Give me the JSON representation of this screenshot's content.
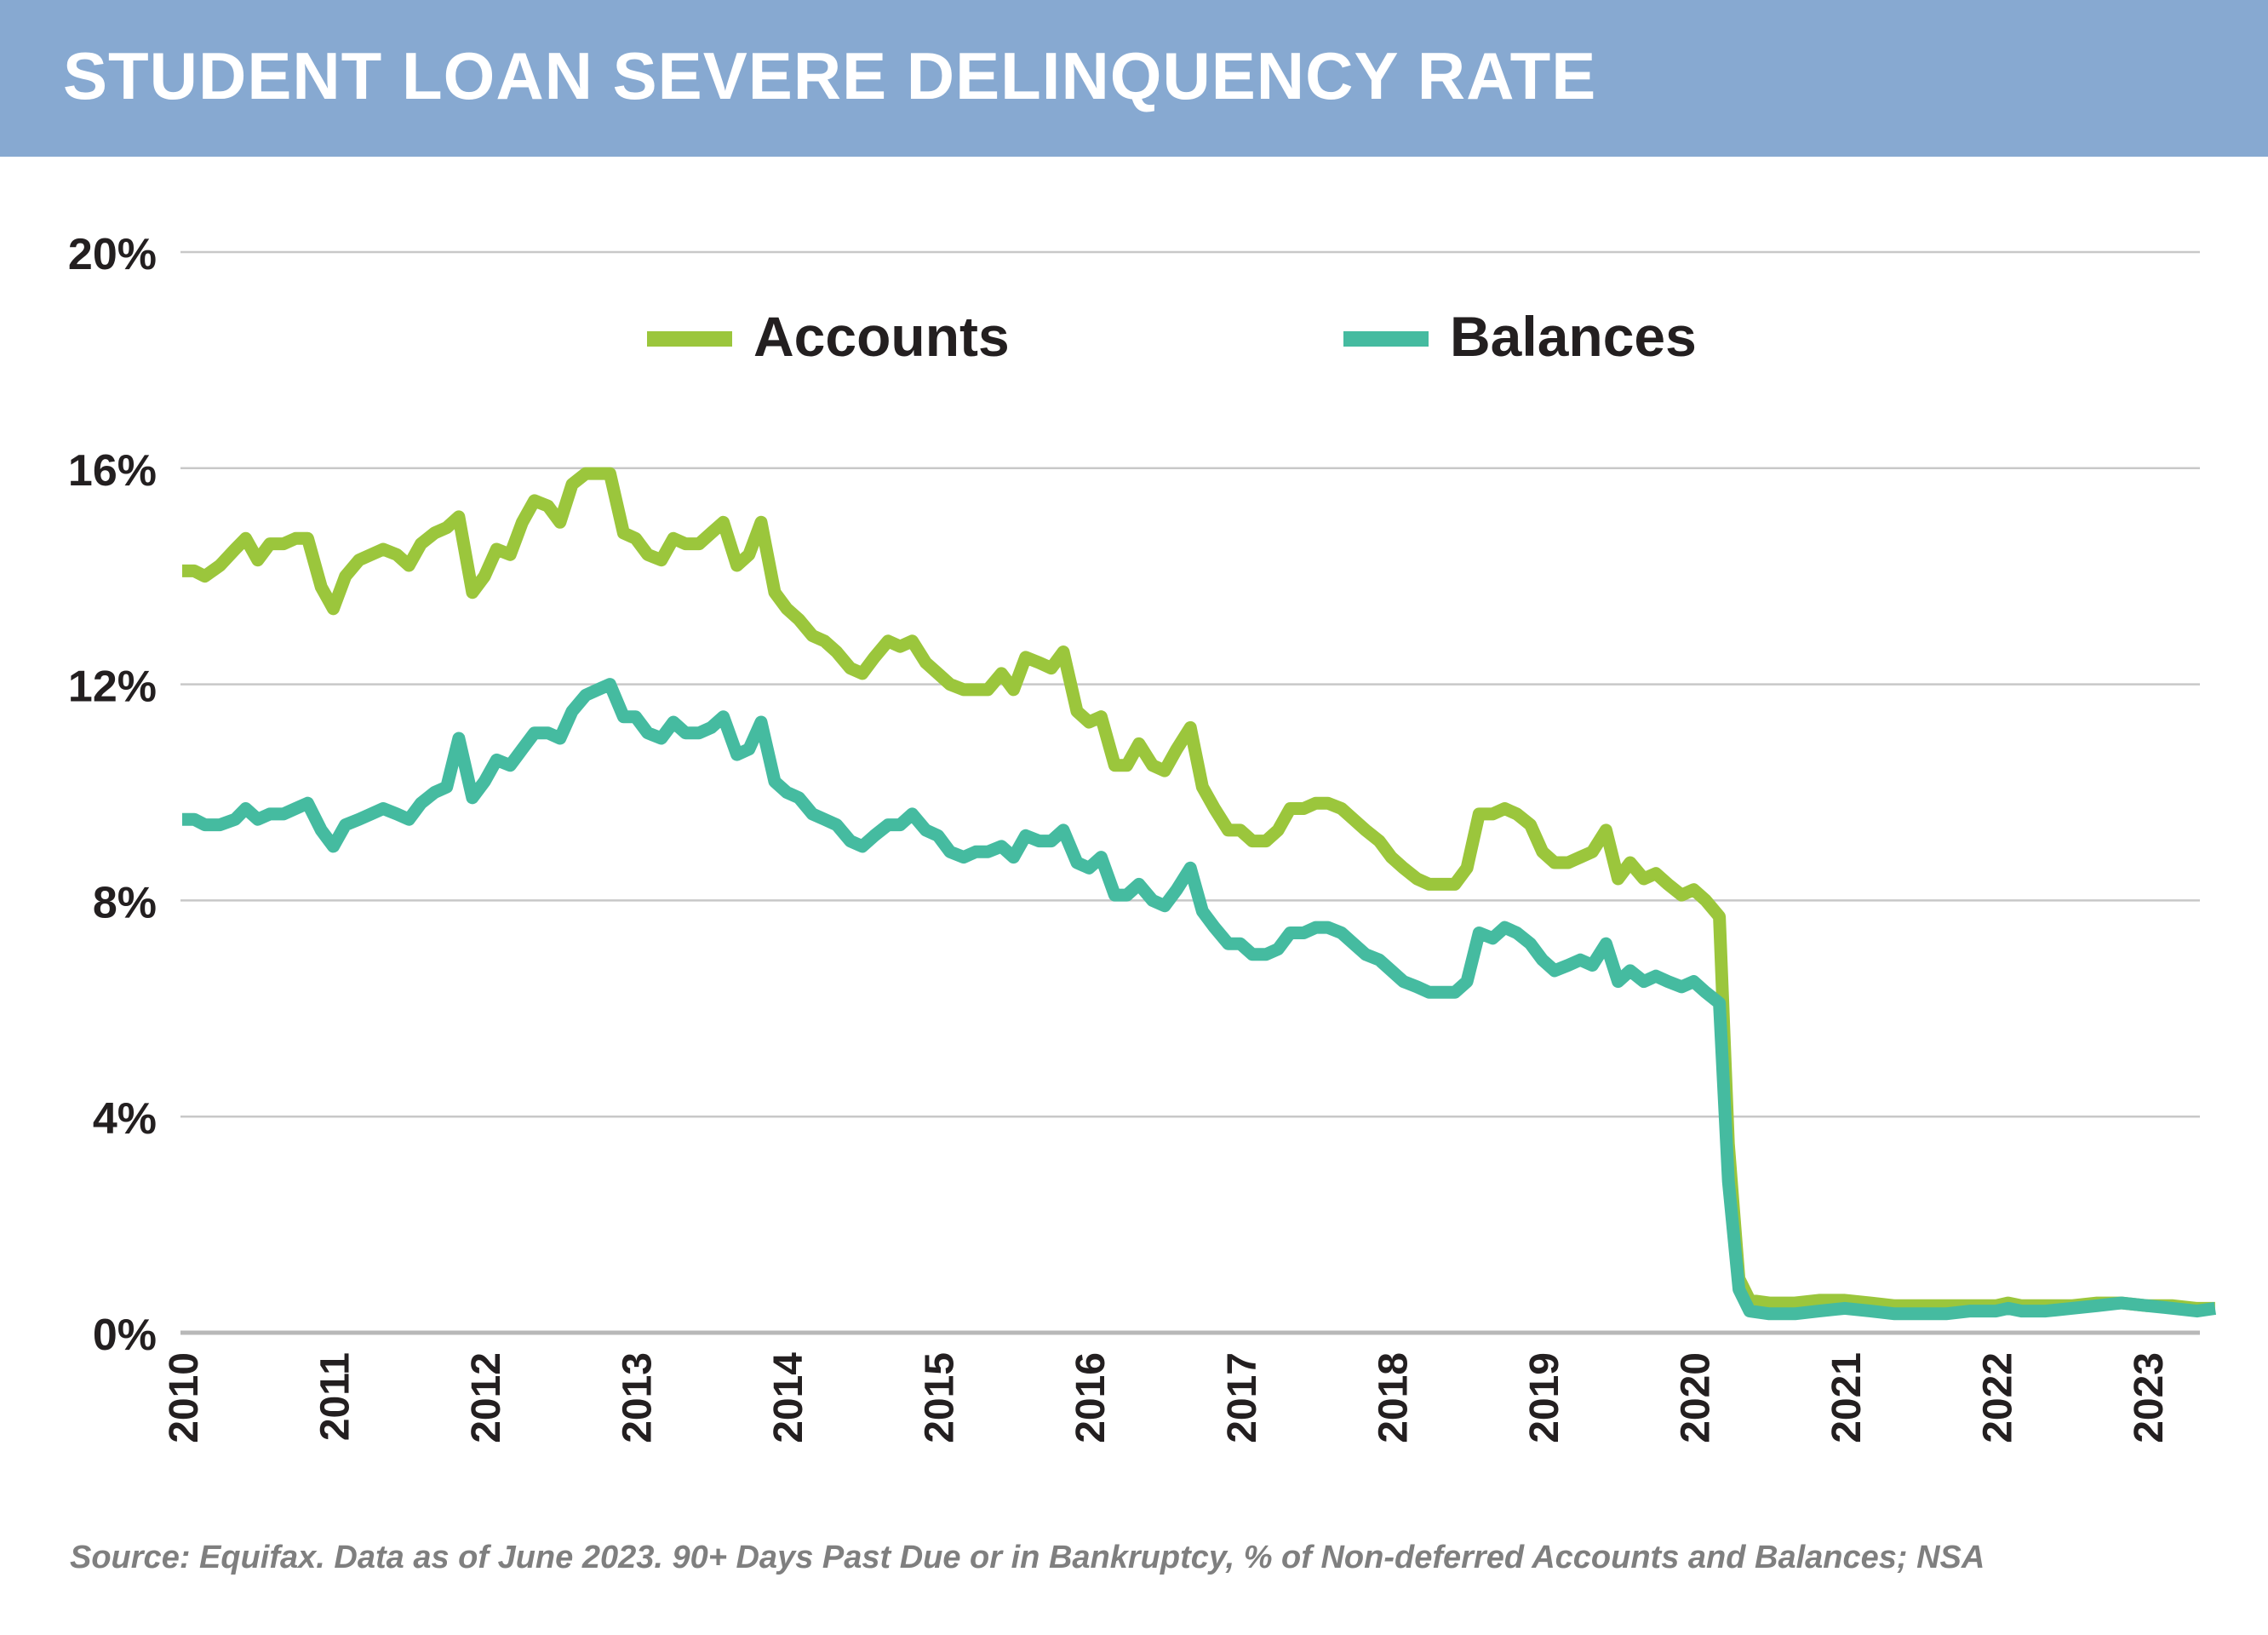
{
  "title": "STUDENT LOAN SEVERE DELINQUENCY RATE",
  "source": "Source: Equifax. Data as of June 2023. 90+ Days Past Due or in Bankruptcy, % of Non-deferred Accounts and Balances; NSA",
  "colors": {
    "header": "#87a9d1",
    "accounts": "#9bc63c",
    "balances": "#45bba0",
    "grid": "#c8c8c8"
  },
  "chart_data": {
    "type": "line",
    "title": "STUDENT LOAN SEVERE DELINQUENCY RATE",
    "xlabel": "",
    "ylabel": "",
    "x_ticks": [
      "2010",
      "2011",
      "2012",
      "2013",
      "2014",
      "2015",
      "2016",
      "2017",
      "2018",
      "2019",
      "2020",
      "2021",
      "2022",
      "2023"
    ],
    "y_ticks": [
      "0%",
      "4%",
      "8%",
      "12%",
      "16%",
      "20%"
    ],
    "y_tick_values": [
      0,
      4,
      8,
      12,
      16,
      20
    ],
    "ylim": [
      0,
      20
    ],
    "xlim": [
      2010.0,
      2023.5
    ],
    "grid": true,
    "legend": "top-center",
    "series": [
      {
        "name": "Accounts",
        "color": "#9bc63c",
        "points": [
          [
            2010.0,
            14.1
          ],
          [
            2010.08,
            14.1
          ],
          [
            2010.15,
            14.0
          ],
          [
            2010.25,
            14.2
          ],
          [
            2010.35,
            14.5
          ],
          [
            2010.42,
            14.7
          ],
          [
            2010.5,
            14.3
          ],
          [
            2010.58,
            14.6
          ],
          [
            2010.67,
            14.6
          ],
          [
            2010.75,
            14.7
          ],
          [
            2010.83,
            14.7
          ],
          [
            2010.92,
            13.8
          ],
          [
            2011.0,
            13.4
          ],
          [
            2011.08,
            14.0
          ],
          [
            2011.17,
            14.3
          ],
          [
            2011.25,
            14.4
          ],
          [
            2011.33,
            14.5
          ],
          [
            2011.42,
            14.4
          ],
          [
            2011.5,
            14.2
          ],
          [
            2011.58,
            14.6
          ],
          [
            2011.67,
            14.8
          ],
          [
            2011.75,
            14.9
          ],
          [
            2011.83,
            15.1
          ],
          [
            2011.92,
            13.7
          ],
          [
            2012.0,
            14.0
          ],
          [
            2012.08,
            14.5
          ],
          [
            2012.17,
            14.4
          ],
          [
            2012.25,
            15.0
          ],
          [
            2012.33,
            15.4
          ],
          [
            2012.42,
            15.3
          ],
          [
            2012.5,
            15.0
          ],
          [
            2012.58,
            15.7
          ],
          [
            2012.67,
            15.9
          ],
          [
            2012.75,
            15.9
          ],
          [
            2012.83,
            15.9
          ],
          [
            2012.92,
            14.8
          ],
          [
            2013.0,
            14.7
          ],
          [
            2013.08,
            14.4
          ],
          [
            2013.17,
            14.3
          ],
          [
            2013.25,
            14.7
          ],
          [
            2013.33,
            14.6
          ],
          [
            2013.42,
            14.6
          ],
          [
            2013.5,
            14.8
          ],
          [
            2013.58,
            15.0
          ],
          [
            2013.67,
            14.2
          ],
          [
            2013.75,
            14.4
          ],
          [
            2013.83,
            15.0
          ],
          [
            2013.92,
            13.7
          ],
          [
            2014.0,
            13.4
          ],
          [
            2014.08,
            13.2
          ],
          [
            2014.17,
            12.9
          ],
          [
            2014.25,
            12.8
          ],
          [
            2014.33,
            12.6
          ],
          [
            2014.42,
            12.3
          ],
          [
            2014.5,
            12.2
          ],
          [
            2014.58,
            12.5
          ],
          [
            2014.67,
            12.8
          ],
          [
            2014.75,
            12.7
          ],
          [
            2014.83,
            12.8
          ],
          [
            2014.92,
            12.4
          ],
          [
            2015.0,
            12.2
          ],
          [
            2015.08,
            12.0
          ],
          [
            2015.17,
            11.9
          ],
          [
            2015.25,
            11.9
          ],
          [
            2015.33,
            11.9
          ],
          [
            2015.42,
            12.2
          ],
          [
            2015.5,
            11.9
          ],
          [
            2015.58,
            12.5
          ],
          [
            2015.67,
            12.4
          ],
          [
            2015.75,
            12.3
          ],
          [
            2015.83,
            12.6
          ],
          [
            2015.92,
            11.5
          ],
          [
            2016.0,
            11.3
          ],
          [
            2016.08,
            11.4
          ],
          [
            2016.17,
            10.5
          ],
          [
            2016.25,
            10.5
          ],
          [
            2016.33,
            10.9
          ],
          [
            2016.42,
            10.5
          ],
          [
            2016.5,
            10.4
          ],
          [
            2016.58,
            10.8
          ],
          [
            2016.67,
            11.2
          ],
          [
            2016.75,
            10.1
          ],
          [
            2016.83,
            9.7
          ],
          [
            2016.92,
            9.3
          ],
          [
            2017.0,
            9.3
          ],
          [
            2017.08,
            9.1
          ],
          [
            2017.17,
            9.1
          ],
          [
            2017.25,
            9.3
          ],
          [
            2017.33,
            9.7
          ],
          [
            2017.42,
            9.7
          ],
          [
            2017.5,
            9.8
          ],
          [
            2017.58,
            9.8
          ],
          [
            2017.67,
            9.7
          ],
          [
            2017.75,
            9.5
          ],
          [
            2017.83,
            9.3
          ],
          [
            2017.92,
            9.1
          ],
          [
            2018.0,
            8.8
          ],
          [
            2018.08,
            8.6
          ],
          [
            2018.17,
            8.4
          ],
          [
            2018.25,
            8.3
          ],
          [
            2018.33,
            8.3
          ],
          [
            2018.42,
            8.3
          ],
          [
            2018.5,
            8.6
          ],
          [
            2018.58,
            9.6
          ],
          [
            2018.67,
            9.6
          ],
          [
            2018.75,
            9.7
          ],
          [
            2018.83,
            9.6
          ],
          [
            2018.92,
            9.4
          ],
          [
            2019.0,
            8.9
          ],
          [
            2019.08,
            8.7
          ],
          [
            2019.17,
            8.7
          ],
          [
            2019.25,
            8.8
          ],
          [
            2019.33,
            8.9
          ],
          [
            2019.42,
            9.3
          ],
          [
            2019.5,
            8.4
          ],
          [
            2019.58,
            8.7
          ],
          [
            2019.67,
            8.4
          ],
          [
            2019.75,
            8.5
          ],
          [
            2019.83,
            8.3
          ],
          [
            2019.92,
            8.1
          ],
          [
            2020.0,
            8.2
          ],
          [
            2020.08,
            8.0
          ],
          [
            2020.17,
            7.7
          ],
          [
            2020.23,
            3.5
          ],
          [
            2020.3,
            1.0
          ],
          [
            2020.37,
            0.6
          ],
          [
            2020.5,
            0.55
          ],
          [
            2020.67,
            0.55
          ],
          [
            2020.83,
            0.6
          ],
          [
            2021.0,
            0.6
          ],
          [
            2021.17,
            0.55
          ],
          [
            2021.33,
            0.5
          ],
          [
            2021.5,
            0.5
          ],
          [
            2021.67,
            0.5
          ],
          [
            2021.83,
            0.5
          ],
          [
            2022.0,
            0.5
          ],
          [
            2022.08,
            0.55
          ],
          [
            2022.17,
            0.5
          ],
          [
            2022.33,
            0.5
          ],
          [
            2022.5,
            0.5
          ],
          [
            2022.67,
            0.55
          ],
          [
            2022.83,
            0.55
          ],
          [
            2023.0,
            0.5
          ],
          [
            2023.17,
            0.5
          ],
          [
            2023.33,
            0.45
          ],
          [
            2023.45,
            0.45
          ]
        ]
      },
      {
        "name": "Balances",
        "color": "#45bba0",
        "points": [
          [
            2010.0,
            9.5
          ],
          [
            2010.08,
            9.5
          ],
          [
            2010.15,
            9.4
          ],
          [
            2010.25,
            9.4
          ],
          [
            2010.35,
            9.5
          ],
          [
            2010.42,
            9.7
          ],
          [
            2010.5,
            9.5
          ],
          [
            2010.58,
            9.6
          ],
          [
            2010.67,
            9.6
          ],
          [
            2010.75,
            9.7
          ],
          [
            2010.83,
            9.8
          ],
          [
            2010.92,
            9.3
          ],
          [
            2011.0,
            9.0
          ],
          [
            2011.08,
            9.4
          ],
          [
            2011.17,
            9.5
          ],
          [
            2011.25,
            9.6
          ],
          [
            2011.33,
            9.7
          ],
          [
            2011.42,
            9.6
          ],
          [
            2011.5,
            9.5
          ],
          [
            2011.58,
            9.8
          ],
          [
            2011.67,
            10.0
          ],
          [
            2011.75,
            10.1
          ],
          [
            2011.83,
            11.0
          ],
          [
            2011.92,
            9.9
          ],
          [
            2012.0,
            10.2
          ],
          [
            2012.08,
            10.6
          ],
          [
            2012.17,
            10.5
          ],
          [
            2012.25,
            10.8
          ],
          [
            2012.33,
            11.1
          ],
          [
            2012.42,
            11.1
          ],
          [
            2012.5,
            11.0
          ],
          [
            2012.58,
            11.5
          ],
          [
            2012.67,
            11.8
          ],
          [
            2012.75,
            11.9
          ],
          [
            2012.83,
            12.0
          ],
          [
            2012.92,
            11.4
          ],
          [
            2013.0,
            11.4
          ],
          [
            2013.08,
            11.1
          ],
          [
            2013.17,
            11.0
          ],
          [
            2013.25,
            11.3
          ],
          [
            2013.33,
            11.1
          ],
          [
            2013.42,
            11.1
          ],
          [
            2013.5,
            11.2
          ],
          [
            2013.58,
            11.4
          ],
          [
            2013.67,
            10.7
          ],
          [
            2013.75,
            10.8
          ],
          [
            2013.83,
            11.3
          ],
          [
            2013.92,
            10.2
          ],
          [
            2014.0,
            10.0
          ],
          [
            2014.08,
            9.9
          ],
          [
            2014.17,
            9.6
          ],
          [
            2014.25,
            9.5
          ],
          [
            2014.33,
            9.4
          ],
          [
            2014.42,
            9.1
          ],
          [
            2014.5,
            9.0
          ],
          [
            2014.58,
            9.2
          ],
          [
            2014.67,
            9.4
          ],
          [
            2014.75,
            9.4
          ],
          [
            2014.83,
            9.6
          ],
          [
            2014.92,
            9.3
          ],
          [
            2015.0,
            9.2
          ],
          [
            2015.08,
            8.9
          ],
          [
            2015.17,
            8.8
          ],
          [
            2015.25,
            8.9
          ],
          [
            2015.33,
            8.9
          ],
          [
            2015.42,
            9.0
          ],
          [
            2015.5,
            8.8
          ],
          [
            2015.58,
            9.2
          ],
          [
            2015.67,
            9.1
          ],
          [
            2015.75,
            9.1
          ],
          [
            2015.83,
            9.3
          ],
          [
            2015.92,
            8.7
          ],
          [
            2016.0,
            8.6
          ],
          [
            2016.08,
            8.8
          ],
          [
            2016.17,
            8.1
          ],
          [
            2016.25,
            8.1
          ],
          [
            2016.33,
            8.3
          ],
          [
            2016.42,
            8.0
          ],
          [
            2016.5,
            7.9
          ],
          [
            2016.58,
            8.2
          ],
          [
            2016.67,
            8.6
          ],
          [
            2016.75,
            7.8
          ],
          [
            2016.83,
            7.5
          ],
          [
            2016.92,
            7.2
          ],
          [
            2017.0,
            7.2
          ],
          [
            2017.08,
            7.0
          ],
          [
            2017.17,
            7.0
          ],
          [
            2017.25,
            7.1
          ],
          [
            2017.33,
            7.4
          ],
          [
            2017.42,
            7.4
          ],
          [
            2017.5,
            7.5
          ],
          [
            2017.58,
            7.5
          ],
          [
            2017.67,
            7.4
          ],
          [
            2017.75,
            7.2
          ],
          [
            2017.83,
            7.0
          ],
          [
            2017.92,
            6.9
          ],
          [
            2018.0,
            6.7
          ],
          [
            2018.08,
            6.5
          ],
          [
            2018.17,
            6.4
          ],
          [
            2018.25,
            6.3
          ],
          [
            2018.33,
            6.3
          ],
          [
            2018.42,
            6.3
          ],
          [
            2018.5,
            6.5
          ],
          [
            2018.58,
            7.4
          ],
          [
            2018.67,
            7.3
          ],
          [
            2018.75,
            7.5
          ],
          [
            2018.83,
            7.4
          ],
          [
            2018.92,
            7.2
          ],
          [
            2019.0,
            6.9
          ],
          [
            2019.08,
            6.7
          ],
          [
            2019.17,
            6.8
          ],
          [
            2019.25,
            6.9
          ],
          [
            2019.33,
            6.8
          ],
          [
            2019.42,
            7.2
          ],
          [
            2019.5,
            6.5
          ],
          [
            2019.58,
            6.7
          ],
          [
            2019.67,
            6.5
          ],
          [
            2019.75,
            6.6
          ],
          [
            2019.83,
            6.5
          ],
          [
            2019.92,
            6.4
          ],
          [
            2020.0,
            6.5
          ],
          [
            2020.08,
            6.3
          ],
          [
            2020.17,
            6.1
          ],
          [
            2020.23,
            2.8
          ],
          [
            2020.3,
            0.8
          ],
          [
            2020.37,
            0.4
          ],
          [
            2020.5,
            0.35
          ],
          [
            2020.67,
            0.35
          ],
          [
            2020.83,
            0.4
          ],
          [
            2021.0,
            0.45
          ],
          [
            2021.17,
            0.4
          ],
          [
            2021.33,
            0.35
          ],
          [
            2021.5,
            0.35
          ],
          [
            2021.67,
            0.35
          ],
          [
            2021.83,
            0.4
          ],
          [
            2022.0,
            0.4
          ],
          [
            2022.08,
            0.45
          ],
          [
            2022.17,
            0.4
          ],
          [
            2022.33,
            0.4
          ],
          [
            2022.5,
            0.45
          ],
          [
            2022.67,
            0.5
          ],
          [
            2022.83,
            0.55
          ],
          [
            2023.0,
            0.5
          ],
          [
            2023.17,
            0.45
          ],
          [
            2023.33,
            0.4
          ],
          [
            2023.45,
            0.45
          ]
        ]
      }
    ]
  }
}
